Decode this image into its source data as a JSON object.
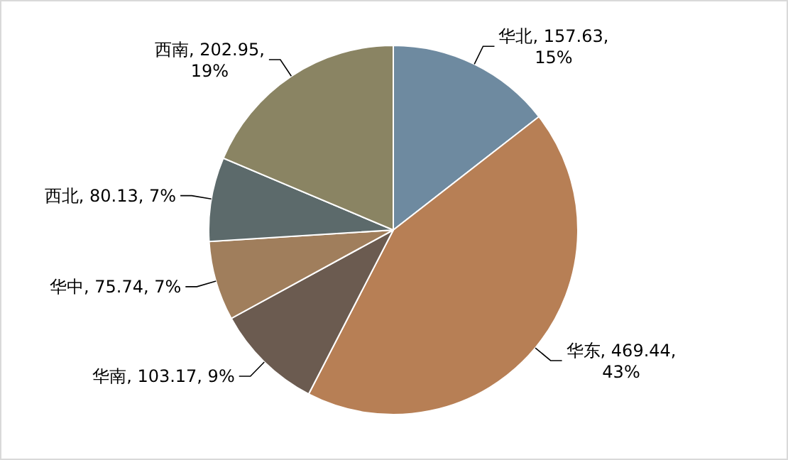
{
  "chart_data": {
    "type": "pie",
    "categories": [
      "华北",
      "华东",
      "华南",
      "华中",
      "西北",
      "西南"
    ],
    "values": [
      157.63,
      469.44,
      103.17,
      75.74,
      80.13,
      202.95
    ],
    "value_labels": [
      "157.63, 15%",
      "469.44, 43%",
      "103.17, 9%",
      "75.74, 7%",
      "80.13, 7%",
      "202.95, 19%"
    ],
    "colors": [
      "#6e8aa0",
      "#b77f55",
      "#6b5b50",
      "#a07e5c",
      "#5c6a6b",
      "#8a8463"
    ]
  }
}
